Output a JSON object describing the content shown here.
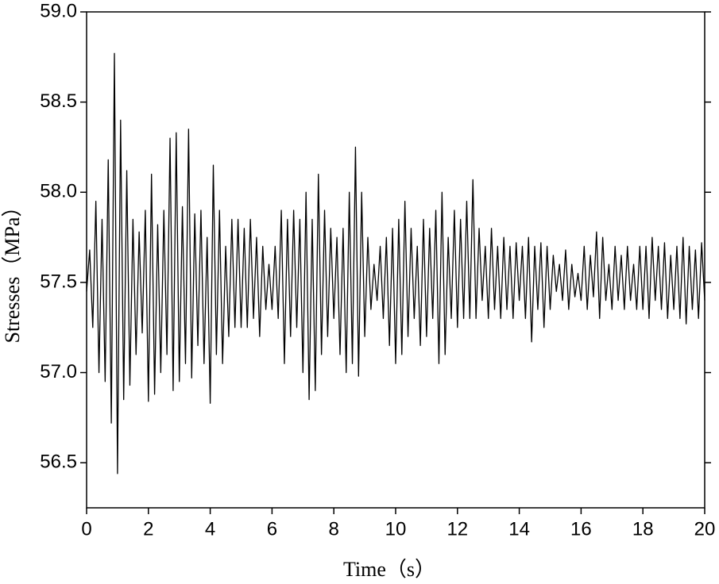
{
  "chart_data": {
    "type": "line",
    "xlabel": "Time（s）",
    "ylabel": "Stresses（MPa）",
    "color": "#000000",
    "xlim": [
      0,
      20
    ],
    "xticks": [
      0,
      2,
      4,
      6,
      8,
      10,
      12,
      14,
      16,
      18,
      20
    ],
    "ylim": [
      56.25,
      59.0
    ],
    "yticks": [
      {
        "value": 56.5,
        "label": "56.5"
      },
      {
        "value": 57,
        "label": "57.0"
      },
      {
        "value": 57.5,
        "label": "57.5"
      },
      {
        "value": 58,
        "label": "58.0"
      },
      {
        "value": 58.5,
        "label": "58.5"
      },
      {
        "value": 59,
        "label": "59.0"
      }
    ],
    "x": [
      0,
      0.1,
      0.2,
      0.3,
      0.4,
      0.5,
      0.6,
      0.7,
      0.8,
      0.9,
      1,
      1.1,
      1.2,
      1.3,
      1.4,
      1.5,
      1.6,
      1.7,
      1.8,
      1.9,
      2,
      2.1,
      2.2,
      2.3,
      2.4,
      2.5,
      2.6,
      2.7,
      2.8,
      2.9,
      3,
      3.1,
      3.2,
      3.3,
      3.4,
      3.5,
      3.6,
      3.7,
      3.8,
      3.9,
      4,
      4.1,
      4.2,
      4.3,
      4.4,
      4.5,
      4.6,
      4.7,
      4.8,
      4.9,
      5,
      5.1,
      5.2,
      5.3,
      5.4,
      5.5,
      5.6,
      5.7,
      5.8,
      5.9,
      6,
      6.1,
      6.2,
      6.3,
      6.4,
      6.5,
      6.6,
      6.7,
      6.8,
      6.9,
      7,
      7.1,
      7.2,
      7.3,
      7.4,
      7.5,
      7.6,
      7.7,
      7.8,
      7.9,
      8,
      8.1,
      8.2,
      8.3,
      8.4,
      8.5,
      8.6,
      8.7,
      8.8,
      8.9,
      9,
      9.1,
      9.2,
      9.3,
      9.4,
      9.5,
      9.6,
      9.7,
      9.8,
      9.9,
      10,
      10.1,
      10.2,
      10.3,
      10.4,
      10.5,
      10.6,
      10.7,
      10.8,
      10.9,
      11,
      11.1,
      11.2,
      11.3,
      11.4,
      11.5,
      11.6,
      11.7,
      11.8,
      11.9,
      12,
      12.1,
      12.2,
      12.3,
      12.4,
      12.5,
      12.6,
      12.7,
      12.8,
      12.9,
      13,
      13.1,
      13.2,
      13.3,
      13.4,
      13.5,
      13.6,
      13.7,
      13.8,
      13.9,
      14,
      14.1,
      14.2,
      14.3,
      14.4,
      14.5,
      14.6,
      14.7,
      14.8,
      14.9,
      15,
      15.1,
      15.2,
      15.3,
      15.4,
      15.5,
      15.6,
      15.7,
      15.8,
      15.9,
      16,
      16.1,
      16.2,
      16.3,
      16.4,
      16.5,
      16.6,
      16.7,
      16.8,
      16.9,
      17,
      17.1,
      17.2,
      17.3,
      17.4,
      17.5,
      17.6,
      17.7,
      17.8,
      17.9,
      18,
      18.1,
      18.2,
      18.3,
      18.4,
      18.5,
      18.6,
      18.7,
      18.8,
      18.9,
      19,
      19.1,
      19.2,
      19.3,
      19.4,
      19.5,
      19.6,
      19.7,
      19.8,
      19.9,
      20
    ],
    "values": [
      57.45,
      57.68,
      57.25,
      57.95,
      57.0,
      57.85,
      56.95,
      58.18,
      56.72,
      58.77,
      56.44,
      58.4,
      56.85,
      58.12,
      56.93,
      57.85,
      57.1,
      57.78,
      57.22,
      57.9,
      56.84,
      58.1,
      56.88,
      57.82,
      57.0,
      57.9,
      57.1,
      58.3,
      56.9,
      58.33,
      56.95,
      57.92,
      57.05,
      58.35,
      56.97,
      57.88,
      57.15,
      57.9,
      57.05,
      57.75,
      56.83,
      58.15,
      57.1,
      57.9,
      57.05,
      57.7,
      57.2,
      57.85,
      57.25,
      57.85,
      57.25,
      57.8,
      57.25,
      57.85,
      57.3,
      57.75,
      57.2,
      57.7,
      57.35,
      57.6,
      57.35,
      57.7,
      57.3,
      57.9,
      57.05,
      57.85,
      57.2,
      57.9,
      57.25,
      57.85,
      57.0,
      58.0,
      56.85,
      57.85,
      56.9,
      58.1,
      57.1,
      57.9,
      57.2,
      57.8,
      57.3,
      57.75,
      57.1,
      57.8,
      57.0,
      58.0,
      57.05,
      58.25,
      56.98,
      58.0,
      57.2,
      57.75,
      57.35,
      57.6,
      57.4,
      57.7,
      57.3,
      57.75,
      57.15,
      57.8,
      57.05,
      57.85,
      57.1,
      57.95,
      57.2,
      57.8,
      57.3,
      57.7,
      57.15,
      57.85,
      57.2,
      57.8,
      57.3,
      57.9,
      57.05,
      58.0,
      57.1,
      57.75,
      57.3,
      57.9,
      57.25,
      57.85,
      57.3,
      57.95,
      57.3,
      58.07,
      57.3,
      57.8,
      57.4,
      57.7,
      57.3,
      57.8,
      57.35,
      57.7,
      57.3,
      57.75,
      57.35,
      57.7,
      57.3,
      57.72,
      57.4,
      57.7,
      57.3,
      57.75,
      57.17,
      57.7,
      57.35,
      57.72,
      57.25,
      57.7,
      57.35,
      57.65,
      57.45,
      57.6,
      57.4,
      57.68,
      57.35,
      57.6,
      57.42,
      57.55,
      57.4,
      57.7,
      57.35,
      57.65,
      57.42,
      57.78,
      57.3,
      57.75,
      57.4,
      57.6,
      57.35,
      57.7,
      57.4,
      57.65,
      57.35,
      57.7,
      57.4,
      57.6,
      57.35,
      57.7,
      57.35,
      57.7,
      57.3,
      57.75,
      57.4,
      57.7,
      57.35,
      57.72,
      57.3,
      57.65,
      57.35,
      57.7,
      57.3,
      57.75,
      57.27,
      57.7,
      57.35,
      57.68,
      57.3,
      57.72,
      57.4
    ]
  }
}
